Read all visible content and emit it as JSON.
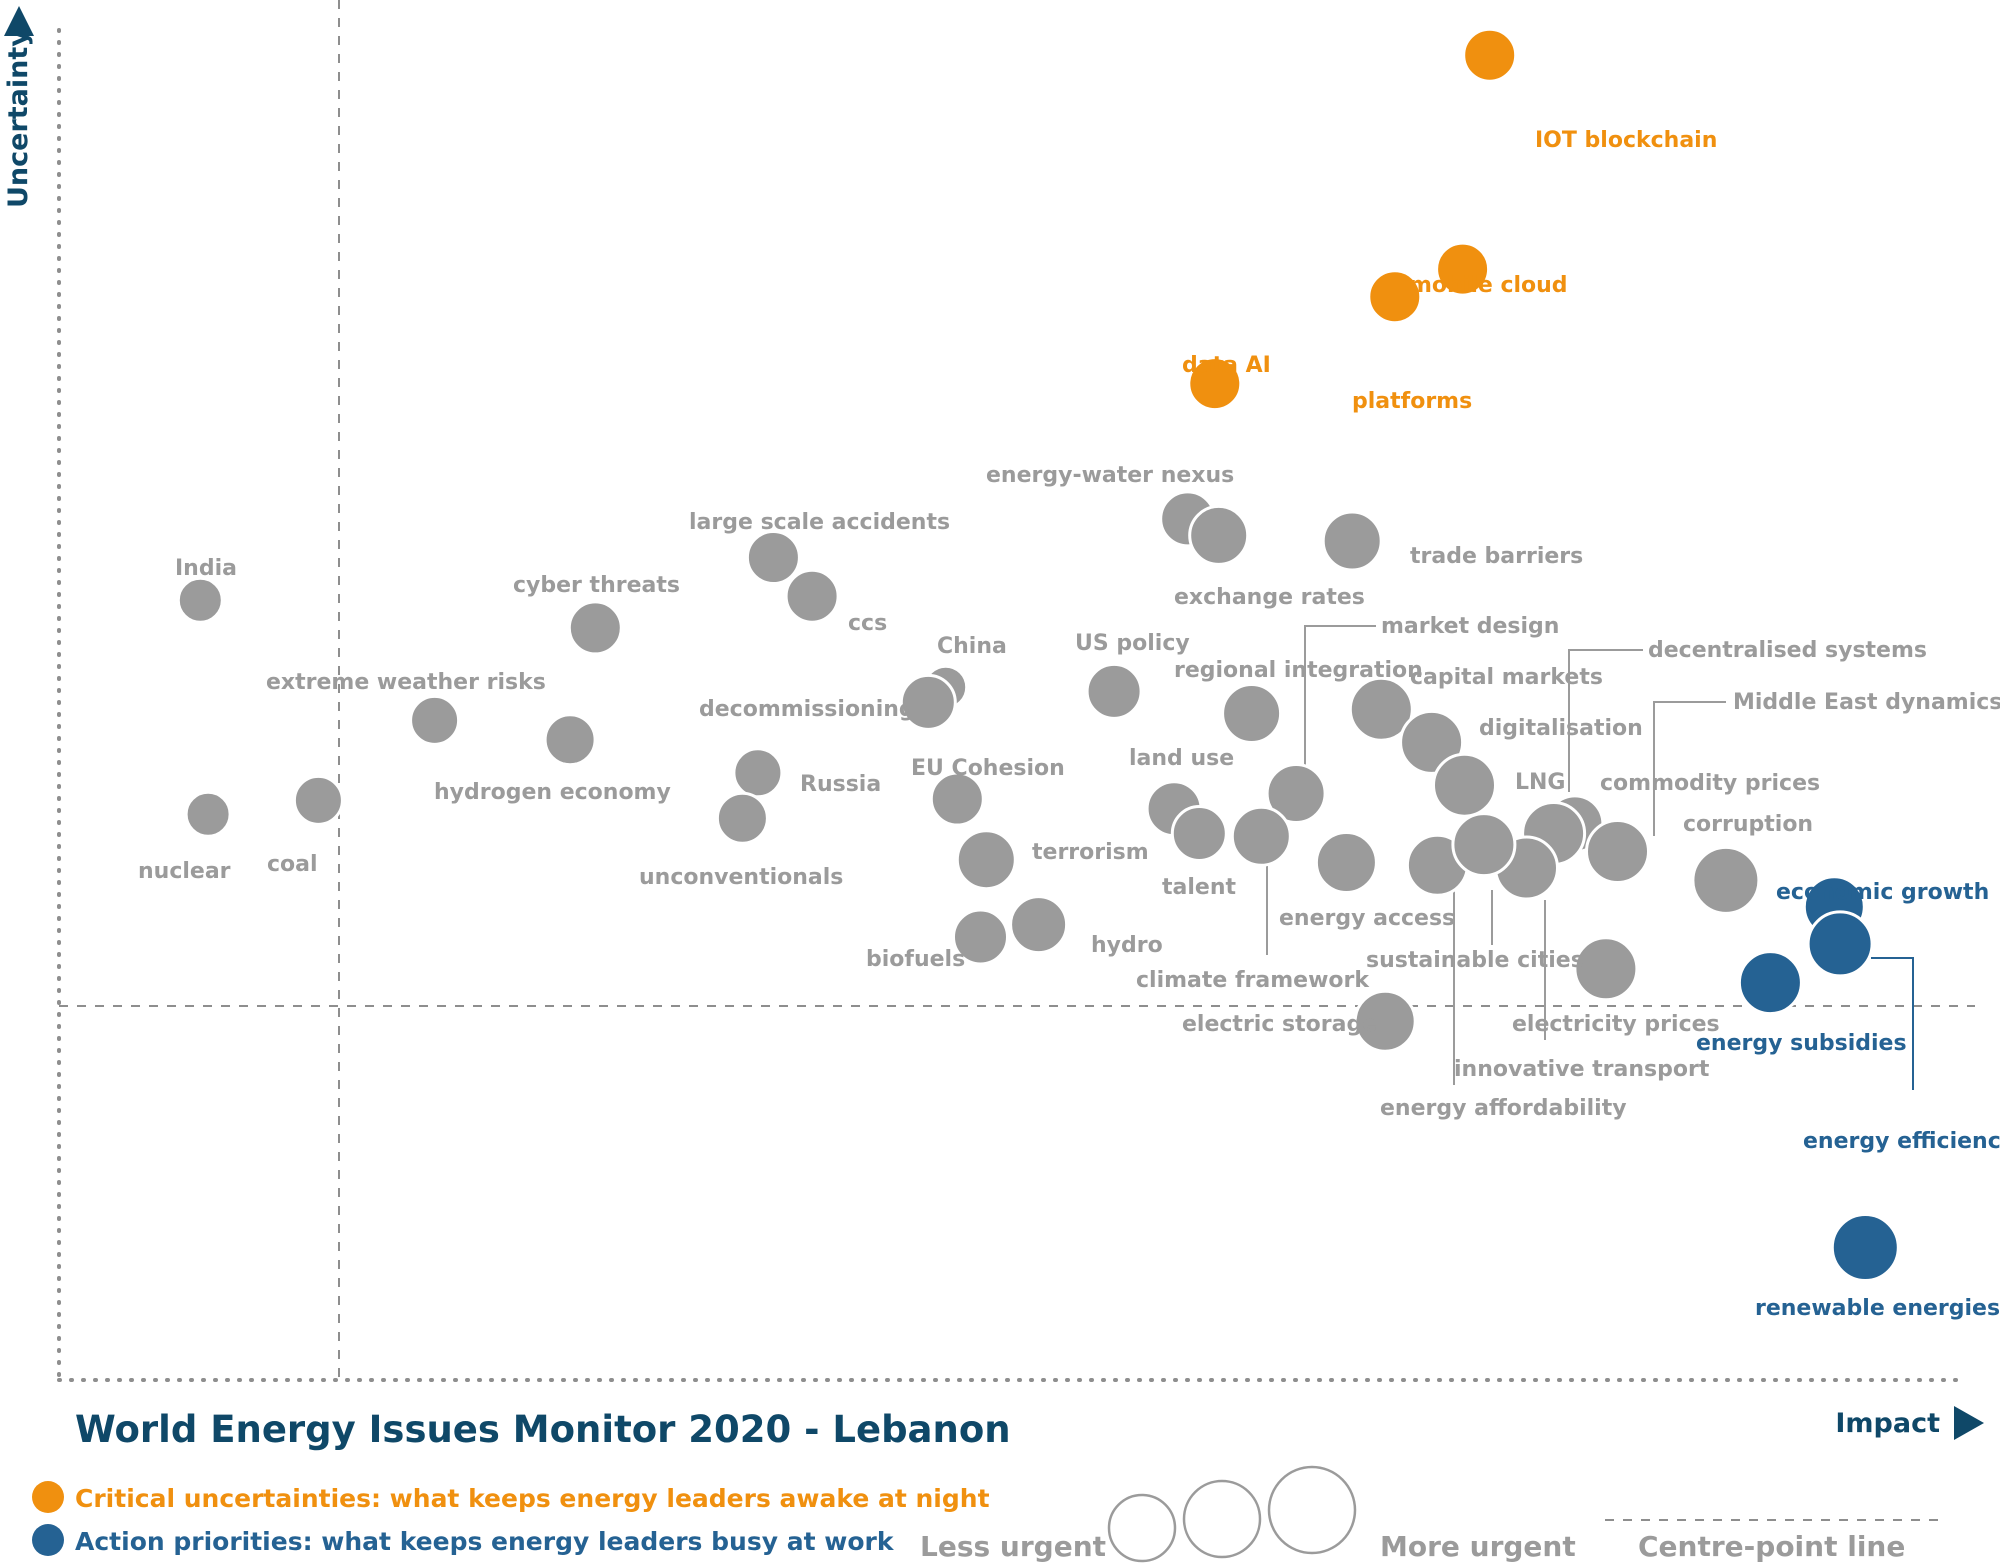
{
  "colors": {
    "grey": "#9b9b9b",
    "orange": "#f0900f",
    "blue": "#256293",
    "navy": "#0f4868",
    "label_grey": "#9b9b9b",
    "line": "#8e8e8e"
  },
  "chart_data": {
    "type": "scatter",
    "title": "World Energy Issues Monitor 2020 - Lebanon",
    "xlabel": "Impact",
    "ylabel": "Uncertainty",
    "xlim": [
      0,
      100
    ],
    "ylim": [
      0,
      100
    ],
    "centre_point": {
      "x": 14,
      "y": 29
    },
    "points": [
      {
        "name": "IOT blockchain",
        "x": 73.9,
        "y": 96.0,
        "size": 52,
        "group": "critical"
      },
      {
        "name": "mobile cloud",
        "x": 72.5,
        "y": 80.5,
        "size": 52,
        "group": "critical"
      },
      {
        "name": "platforms",
        "x": 69.0,
        "y": 78.5,
        "size": 52,
        "group": "critical"
      },
      {
        "name": "data AI",
        "x": 59.7,
        "y": 72.2,
        "size": 52,
        "group": "critical"
      },
      {
        "name": "energy-water nexus",
        "x": 58.3,
        "y": 62.4,
        "size": 54,
        "group": "other"
      },
      {
        "name": "exchange rates",
        "x": 59.9,
        "y": 61.2,
        "size": 58,
        "group": "other"
      },
      {
        "name": "trade barriers",
        "x": 66.8,
        "y": 60.8,
        "size": 58,
        "group": "other"
      },
      {
        "name": "India",
        "x": 7.3,
        "y": 56.5,
        "size": 44,
        "group": "other"
      },
      {
        "name": "large scale accidents",
        "x": 36.9,
        "y": 59.6,
        "size": 52,
        "group": "other"
      },
      {
        "name": "ccs",
        "x": 38.9,
        "y": 56.8,
        "size": 52,
        "group": "other"
      },
      {
        "name": "cyber threats",
        "x": 27.7,
        "y": 54.5,
        "size": 52,
        "group": "other"
      },
      {
        "name": "China",
        "x": 45.8,
        "y": 50.2,
        "size": 42,
        "group": "other"
      },
      {
        "name": "decommissioning",
        "x": 44.9,
        "y": 49.1,
        "size": 54,
        "group": "other"
      },
      {
        "name": "US policy",
        "x": 54.5,
        "y": 49.9,
        "size": 54,
        "group": "other"
      },
      {
        "name": "regional integration",
        "x": 61.6,
        "y": 48.3,
        "size": 58,
        "group": "other"
      },
      {
        "name": "capital markets",
        "x": 68.3,
        "y": 48.6,
        "size": 62,
        "group": "other"
      },
      {
        "name": "extreme weather risks",
        "x": 19.4,
        "y": 47.8,
        "size": 48,
        "group": "other"
      },
      {
        "name": "hydrogen economy",
        "x": 26.4,
        "y": 46.4,
        "size": 50,
        "group": "other"
      },
      {
        "name": "digitalisation",
        "x": 70.9,
        "y": 46.2,
        "size": 62,
        "group": "other"
      },
      {
        "name": "Russia",
        "x": 36.1,
        "y": 44.0,
        "size": 48,
        "group": "other"
      },
      {
        "name": "coal",
        "x": 13.4,
        "y": 42.0,
        "size": 48,
        "group": "other"
      },
      {
        "name": "nuclear",
        "x": 7.7,
        "y": 41.0,
        "size": 44,
        "group": "other"
      },
      {
        "name": "LNG",
        "x": 72.6,
        "y": 43.1,
        "size": 62,
        "group": "other"
      },
      {
        "name": "EU Cohesion",
        "x": 46.4,
        "y": 42.1,
        "size": 52,
        "group": "other"
      },
      {
        "name": "land use",
        "x": 57.6,
        "y": 41.4,
        "size": 54,
        "group": "other"
      },
      {
        "name": "market design",
        "x": 63.9,
        "y": 42.5,
        "size": 58,
        "group": "other"
      },
      {
        "name": "unconventionals",
        "x": 35.3,
        "y": 40.7,
        "size": 50,
        "group": "other"
      },
      {
        "name": "commodity prices",
        "x": 78.3,
        "y": 40.3,
        "size": 56,
        "group": "other"
      },
      {
        "name": "climate framework",
        "x": 62.1,
        "y": 39.4,
        "size": 58,
        "group": "other"
      },
      {
        "name": "talent",
        "x": 58.9,
        "y": 39.6,
        "size": 54,
        "group": "other"
      },
      {
        "name": "decentralised systems",
        "x": 77.2,
        "y": 39.6,
        "size": 62,
        "group": "other"
      },
      {
        "name": "terrorism",
        "x": 47.9,
        "y": 37.7,
        "size": 58,
        "group": "other"
      },
      {
        "name": "energy access",
        "x": 66.5,
        "y": 37.5,
        "size": 60,
        "group": "other"
      },
      {
        "name": "energy affordability",
        "x": 71.2,
        "y": 37.3,
        "size": 60,
        "group": "other"
      },
      {
        "name": "innovative transport",
        "x": 75.8,
        "y": 37.1,
        "size": 62,
        "group": "other"
      },
      {
        "name": "sustainable cities",
        "x": 73.6,
        "y": 38.8,
        "size": 62,
        "group": "other"
      },
      {
        "name": "Middle East dynamics",
        "x": 80.5,
        "y": 38.3,
        "size": 62,
        "group": "other"
      },
      {
        "name": "corruption",
        "x": 86.1,
        "y": 36.2,
        "size": 66,
        "group": "other"
      },
      {
        "name": "economic growth",
        "x": 91.7,
        "y": 34.3,
        "size": 60,
        "group": "action"
      },
      {
        "name": "energy efficiency",
        "x": 92.0,
        "y": 31.6,
        "size": 64,
        "group": "action"
      },
      {
        "name": "energy subsidies",
        "x": 88.4,
        "y": 28.8,
        "size": 62,
        "group": "action"
      },
      {
        "name": "hydro",
        "x": 50.6,
        "y": 33.0,
        "size": 56,
        "group": "other"
      },
      {
        "name": "biofuels",
        "x": 47.6,
        "y": 32.1,
        "size": 54,
        "group": "other"
      },
      {
        "name": "electricity prices",
        "x": 79.9,
        "y": 29.8,
        "size": 62,
        "group": "other"
      },
      {
        "name": "electric storage",
        "x": 68.5,
        "y": 26.0,
        "size": 60,
        "group": "other"
      },
      {
        "name": "renewable energies",
        "x": 93.3,
        "y": 9.6,
        "size": 66,
        "group": "action"
      }
    ]
  },
  "legend": {
    "critical": "Critical uncertainties: what keeps energy leaders awake at night",
    "action": "Action priorities: what keeps energy leaders busy at work",
    "less_urgent": "Less urgent",
    "more_urgent": "More urgent",
    "centre_line": "Centre-point  line"
  }
}
